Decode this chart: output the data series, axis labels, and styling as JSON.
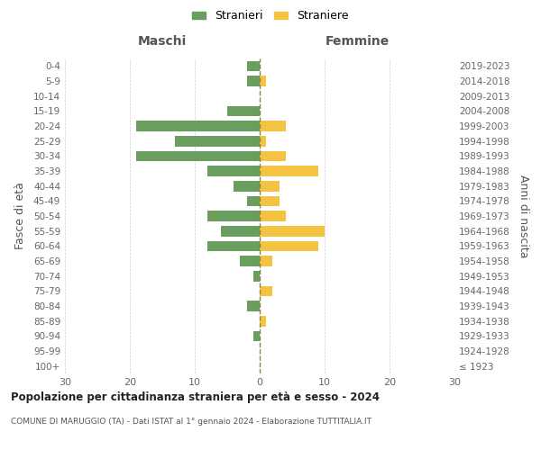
{
  "age_groups": [
    "100+",
    "95-99",
    "90-94",
    "85-89",
    "80-84",
    "75-79",
    "70-74",
    "65-69",
    "60-64",
    "55-59",
    "50-54",
    "45-49",
    "40-44",
    "35-39",
    "30-34",
    "25-29",
    "20-24",
    "15-19",
    "10-14",
    "5-9",
    "0-4"
  ],
  "birth_years": [
    "≤ 1923",
    "1924-1928",
    "1929-1933",
    "1934-1938",
    "1939-1943",
    "1944-1948",
    "1949-1953",
    "1954-1958",
    "1959-1963",
    "1964-1968",
    "1969-1973",
    "1974-1978",
    "1979-1983",
    "1984-1988",
    "1989-1993",
    "1994-1998",
    "1999-2003",
    "2004-2008",
    "2009-2013",
    "2014-2018",
    "2019-2023"
  ],
  "maschi": [
    0,
    0,
    1,
    0,
    2,
    0,
    1,
    3,
    8,
    6,
    8,
    2,
    4,
    8,
    19,
    13,
    19,
    5,
    0,
    2,
    2
  ],
  "femmine": [
    0,
    0,
    0,
    1,
    0,
    2,
    0,
    2,
    9,
    10,
    4,
    3,
    3,
    9,
    4,
    1,
    4,
    0,
    0,
    1,
    0
  ],
  "maschi_color": "#6a9e5e",
  "femmine_color": "#f5c342",
  "title_main": "Popolazione per cittadinanza straniera per età e sesso - 2024",
  "title_sub": "COMUNE DI MARUGGIO (TA) - Dati ISTAT al 1° gennaio 2024 - Elaborazione TUTTITALIA.IT",
  "legend_maschi": "Stranieri",
  "legend_femmine": "Straniere",
  "label_left": "Maschi",
  "label_right": "Femmine",
  "ylabel_left": "Fasce di età",
  "ylabel_right": "Anni di nascita",
  "xlim": 30,
  "background_color": "#ffffff",
  "grid_color": "#cccccc",
  "vline_color": "#888844"
}
